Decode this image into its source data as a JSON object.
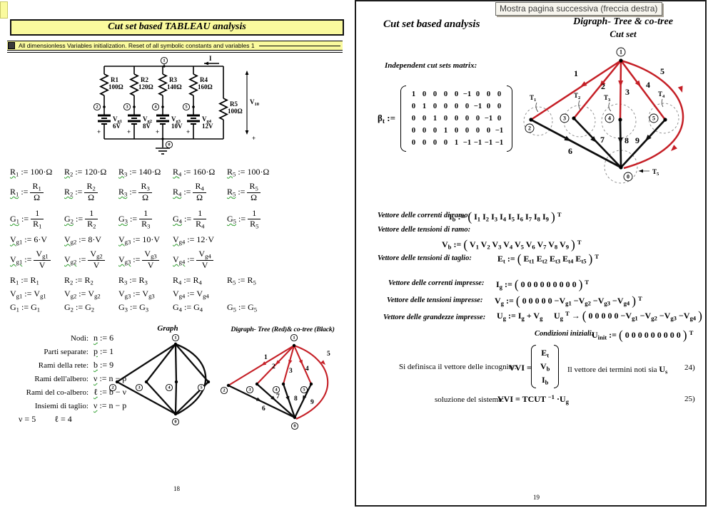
{
  "tooltip": "Mostra pagina successiva (freccia destra)",
  "shared": {
    "node_labels": [
      "1",
      "2",
      "3",
      "4",
      "5",
      "0"
    ],
    "edge_numbers": [
      "1",
      "2",
      "3",
      "4",
      "5",
      "6",
      "7",
      "8",
      "9"
    ]
  },
  "left_page": {
    "title": "Cut set based TABLEAU analysis",
    "section_label": "All dimensionless Variables initialization. Reset of all symbolic constants and variables 1",
    "page_number": "18",
    "circuit": {
      "resistors": [
        {
          "name": "R1",
          "value": "100Ω"
        },
        {
          "name": "R2",
          "value": "120Ω"
        },
        {
          "name": "R3",
          "value": "140Ω"
        },
        {
          "name": "R4",
          "value": "160Ω"
        },
        {
          "name": "R5",
          "value": "100Ω"
        }
      ],
      "sources": [
        {
          "base": "V",
          "sub": "g1",
          "value": "6V"
        },
        {
          "base": "V",
          "sub": "g2",
          "value": "8V"
        },
        {
          "base": "V",
          "sub": "g3",
          "value": "10V"
        },
        {
          "base": "V",
          "sub": "g4",
          "value": "12V"
        }
      ],
      "current_label": "I",
      "voltage_base": "V",
      "voltage_sub": "10",
      "plus": "+"
    },
    "eq_rows": [
      {
        "cells": [
          {
            "l": "R_1",
            "w": 1,
            "r": "100·Ω"
          },
          {
            "l": "R_2",
            "w": 1,
            "r": "120·Ω"
          },
          {
            "l": "R_3",
            "w": 1,
            "r": "140·Ω"
          },
          {
            "l": "R_4",
            "w": 1,
            "r": "160·Ω"
          },
          {
            "l": "R_5",
            "w": 1,
            "r": "100·Ω"
          }
        ]
      },
      {
        "cells": [
          {
            "l": "R_1",
            "w": 1,
            "n": "R_1",
            "d": "Ω"
          },
          {
            "l": "R_2",
            "w": 1,
            "n": "R_2",
            "d": "Ω"
          },
          {
            "l": "R_3",
            "w": 1,
            "n": "R_3",
            "d": "Ω"
          },
          {
            "l": "R_4",
            "w": 1,
            "n": "R_4",
            "d": "Ω"
          },
          {
            "l": "R_5",
            "w": 1,
            "n": "R_5",
            "d": "Ω"
          }
        ]
      },
      {
        "cells": [
          {
            "l": "G_1",
            "w": 1,
            "n": "1",
            "d": "R_1"
          },
          {
            "l": "G_2",
            "w": 1,
            "n": "1",
            "d": "R_2"
          },
          {
            "l": "G_3",
            "w": 1,
            "n": "1",
            "d": "R_3"
          },
          {
            "l": "G_4",
            "w": 1,
            "n": "1",
            "d": "R_4"
          },
          {
            "l": "G_5",
            "w": 1,
            "n": "1",
            "d": "R_5"
          }
        ]
      },
      {
        "cells": [
          {
            "l": "V_g1",
            "w": 1,
            "r": "6·V"
          },
          {
            "l": "V_g2",
            "w": 1,
            "r": "8·V"
          },
          {
            "l": "V_g3",
            "w": 1,
            "r": "10·V"
          },
          {
            "l": "V_g4",
            "w": 1,
            "r": "12·V"
          }
        ]
      },
      {
        "cells": [
          {
            "l": "V_g1",
            "w": 1,
            "n": "V_g1",
            "d": "V"
          },
          {
            "l": "V_g2",
            "w": 1,
            "n": "V_g2",
            "d": "V"
          },
          {
            "l": "V_g3",
            "w": 1,
            "n": "V_g3",
            "d": "V"
          },
          {
            "l": "V_g4",
            "w": 1,
            "n": "V_g4",
            "d": "V"
          }
        ]
      },
      {
        "cells": [
          {
            "l": "R_1",
            "r": "R_1"
          },
          {
            "l": "R_2",
            "r": "R_2"
          },
          {
            "l": "R_3",
            "r": "R_3"
          },
          {
            "l": "R_4",
            "r": "R_4"
          },
          {
            "l": "R_5",
            "r": "R_5"
          }
        ]
      },
      {
        "cells": [
          {
            "l": "V_g1",
            "r": "V_g1"
          },
          {
            "l": "V_g2",
            "r": "V_g2"
          },
          {
            "l": "V_g3",
            "r": "V_g3"
          },
          {
            "l": "V_g4",
            "r": "V_g4"
          }
        ]
      },
      {
        "cells": [
          {
            "l": "G_1",
            "r": "G_1"
          },
          {
            "l": "G_2",
            "r": "G_2"
          },
          {
            "l": "G_3",
            "r": "G_3"
          },
          {
            "l": "G_4",
            "r": "G_4"
          },
          {
            "l": "G_5",
            "r": "G_5"
          }
        ]
      }
    ],
    "params": [
      {
        "label": "Nodi:",
        "math": "n := 6",
        "wavy": true
      },
      {
        "label": "Parti separate:",
        "math": "p := 1",
        "wavy": true
      },
      {
        "label": "Rami della rete:",
        "math": "b := 9",
        "wavy": true
      },
      {
        "label": "Rami dell'albero:",
        "math": "ν := n − p",
        "wavy": true
      },
      {
        "label": "Rami del co-albero:",
        "math": "ℓ := b − ν",
        "wavy": true
      },
      {
        "label": "Insiemi di taglio:",
        "math": "ν := n − p",
        "wavy": true
      }
    ],
    "results": [
      "ν = 5",
      "ℓ = 4"
    ],
    "graph_title": "Graph",
    "digraph_title": "Digraph- Tree (Red)& co-tree (Black)"
  },
  "right_page": {
    "title": "Cut set based analysis",
    "digraph_title_line1": "Digraph- Tree & co-tree",
    "digraph_title_line2": "Cut set",
    "matrix_label": "Independent cut sets matrix:",
    "beta": {
      "base": "β",
      "sub": "t",
      "op": ":=",
      "rows": [
        [
          1,
          0,
          0,
          0,
          0,
          -1,
          0,
          0,
          0
        ],
        [
          0,
          1,
          0,
          0,
          0,
          0,
          -1,
          0,
          0
        ],
        [
          0,
          0,
          1,
          0,
          0,
          0,
          0,
          -1,
          0
        ],
        [
          0,
          0,
          0,
          1,
          0,
          0,
          0,
          0,
          -1
        ],
        [
          0,
          0,
          0,
          0,
          1,
          -1,
          -1,
          -1,
          -1
        ]
      ]
    },
    "cut_sets": [
      {
        "base": "T",
        "sub": "1"
      },
      {
        "base": "T",
        "sub": "2"
      },
      {
        "base": "T",
        "sub": "3"
      },
      {
        "base": "T",
        "sub": "4"
      },
      {
        "base": "T",
        "sub": "5"
      }
    ],
    "lines": {
      "ib": {
        "label": "Vettore delle correnti di ramo:",
        "math": "I_b := ( I_1 I_2 I_3 I_4 I_5 I_6 I_7 I_8 I_9 ) ^T"
      },
      "vb": {
        "label": "Vettore delle tensioni di ramo:",
        "math": "V_b := ( V_1 V_2 V_3 V_4 V_5 V_6 V_7 V_8 V_9 ) ^T"
      },
      "et": {
        "label": "Vettore delle tensioni di taglio:",
        "math": "E_t := ( E_t1 E_t2 E_t3 E_t4 E_t5 ) ^T"
      },
      "ig": {
        "label": "Vettore delle  correnti impresse:",
        "math": "I_g := ( 0 0 0 0 0 0 0 0 0 ) ^T"
      },
      "vg": {
        "label": "Vettore delle tensioni impresse:",
        "math": "V_g := ( 0 0 0 0 0 −V_g1 −V_g2 −V_g3 −V_g4 ) ^T"
      },
      "ug": {
        "label": "Vettore delle grandezze impresse:",
        "math1": "U_g := I_g + V_g",
        "math2": "U_g ^T → ( 0 0 0 0 0 −V_g1 −V_g2 −V_g3 −V_g4 )"
      },
      "uinit": {
        "label": "Condizioni iniziali:",
        "math": "U_init := ( 0 0 0 0 0 0 0 0 0 ) ^T"
      },
      "vvi": {
        "label": "Si definisca il vettore delle incognite:",
        "lhs": "VVI =",
        "vector": [
          "E_t",
          "V_b",
          "I_b"
        ],
        "note": "Il vettore dei termini noti sia",
        "note_math": "U_s",
        "num": "24)"
      },
      "sol": {
        "label": "soluzione del sistema:",
        "math": "VVI = TCUT ^−1 ·U_g",
        "num": "25)"
      }
    },
    "page_number": "19"
  }
}
